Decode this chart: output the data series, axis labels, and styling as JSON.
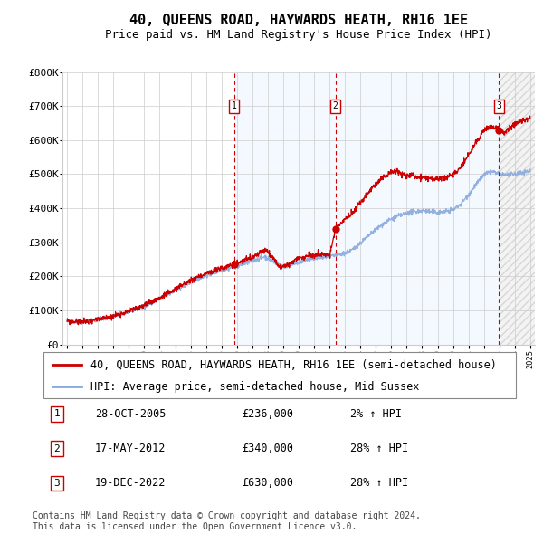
{
  "title": "40, QUEENS ROAD, HAYWARDS HEATH, RH16 1EE",
  "subtitle": "Price paid vs. HM Land Registry's House Price Index (HPI)",
  "ylim": [
    0,
    800000
  ],
  "yticks": [
    0,
    100000,
    200000,
    300000,
    400000,
    500000,
    600000,
    700000,
    800000
  ],
  "ytick_labels": [
    "£0",
    "£100K",
    "£200K",
    "£300K",
    "£400K",
    "£500K",
    "£600K",
    "£700K",
    "£800K"
  ],
  "xlim_start": 1994.7,
  "xlim_end": 2025.3,
  "transactions": [
    {
      "date_num": 2005.83,
      "price": 236000,
      "label": "1",
      "date_str": "28-OCT-2005",
      "price_str": "£236,000",
      "pct": "2%",
      "dir": "↑"
    },
    {
      "date_num": 2012.38,
      "price": 340000,
      "label": "2",
      "date_str": "17-MAY-2012",
      "price_str": "£340,000",
      "pct": "28%",
      "dir": "↑"
    },
    {
      "date_num": 2022.97,
      "price": 630000,
      "label": "3",
      "date_str": "19-DEC-2022",
      "price_str": "£630,000",
      "pct": "28%",
      "dir": "↑"
    }
  ],
  "legend_property": "40, QUEENS ROAD, HAYWARDS HEATH, RH16 1EE (semi-detached house)",
  "legend_hpi": "HPI: Average price, semi-detached house, Mid Sussex",
  "footer": "Contains HM Land Registry data © Crown copyright and database right 2024.\nThis data is licensed under the Open Government Licence v3.0.",
  "property_line_color": "#cc0000",
  "hpi_line_color": "#88aadd",
  "vline_color": "#cc0000",
  "marker_box_color": "#cc0000",
  "bg_shaded_color": "#ddeeff",
  "grid_color": "#cccccc",
  "title_fontsize": 11,
  "subtitle_fontsize": 9,
  "axis_fontsize": 8,
  "legend_fontsize": 8.5,
  "footer_fontsize": 7
}
